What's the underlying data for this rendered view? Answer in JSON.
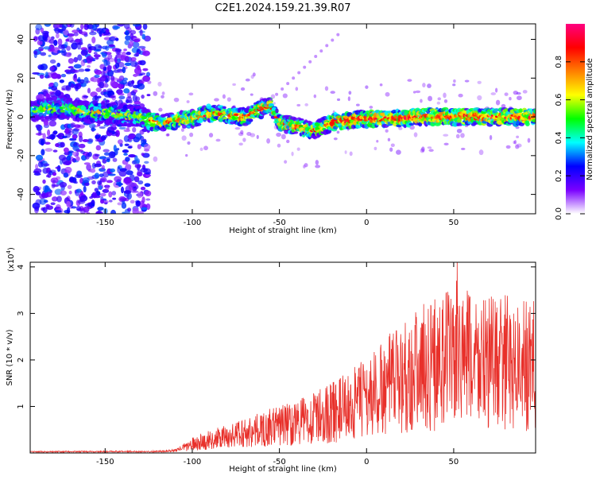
{
  "chart_data": [
    {
      "type": "heatmap",
      "title": "C2E1.2024.159.21.39.R07",
      "xlabel": "Height of straight line (km)",
      "ylabel": "Frequency (Hz)",
      "xlim": [
        -193,
        97
      ],
      "ylim": [
        -50,
        48
      ],
      "xticks": [
        -150,
        -100,
        -50,
        0,
        50
      ],
      "yticks": [
        -40,
        -20,
        0,
        20,
        40
      ],
      "colorbar": {
        "label": "Normalized spectral amplitude",
        "range": [
          0,
          1
        ],
        "ticks": [
          "0.0",
          "0.2",
          "0.4",
          "0.6",
          "0.8"
        ],
        "colors": [
          "#ffffff",
          "#7a00ff",
          "#0000ff",
          "#00ffff",
          "#00ff00",
          "#ffff00",
          "#ff7f00",
          "#ff0000",
          "#ff0080"
        ]
      },
      "ridge": {
        "x": [
          -193,
          -185,
          -175,
          -165,
          -150,
          -140,
          -130,
          -125,
          -120,
          -110,
          -100,
          -90,
          -80,
          -70,
          -63,
          -58,
          -55,
          -50,
          -45,
          -40,
          -35,
          -30,
          -25,
          -20,
          -15,
          -10,
          -5,
          0,
          10,
          20,
          30,
          40,
          50,
          60,
          70,
          80,
          90,
          97
        ],
        "y": [
          3,
          4,
          5,
          3,
          2,
          1,
          0,
          -2,
          -3,
          -2,
          -1,
          2,
          1,
          0,
          3,
          5,
          6,
          -3,
          -4,
          -5,
          -6,
          -7,
          -5,
          -3,
          -2,
          -2,
          -1,
          -1,
          -1,
          -1,
          0,
          0,
          0,
          0,
          0,
          0,
          0,
          0
        ]
      }
    },
    {
      "type": "line",
      "xlabel": "Height of straight line (km)",
      "ylabel": "SNR (10 * v/v)",
      "y_multiplier": "(x10",
      "y_multiplier_exp": "4",
      "xlim": [
        -193,
        97
      ],
      "ylim": [
        0,
        4.1
      ],
      "xticks": [
        -150,
        -100,
        -50,
        0,
        50
      ],
      "yticks": [
        1,
        2,
        3,
        4
      ],
      "series": [
        {
          "color": "#e8302a",
          "envelope_x": [
            -193,
            -120,
            -110,
            -100,
            -90,
            -80,
            -70,
            -60,
            -50,
            -40,
            -30,
            -20,
            -10,
            0,
            10,
            20,
            30,
            40,
            50,
            60,
            70,
            80,
            90,
            97
          ],
          "envelope_y": [
            0.04,
            0.05,
            0.08,
            0.3,
            0.45,
            0.55,
            0.7,
            0.8,
            0.95,
            1.05,
            1.2,
            1.4,
            1.6,
            1.9,
            2.2,
            2.6,
            2.9,
            3.1,
            3.4,
            3.2,
            3.1,
            3.1,
            3.0,
            3.0
          ],
          "peak_x": 52,
          "peak_y": 4.1
        }
      ]
    }
  ]
}
